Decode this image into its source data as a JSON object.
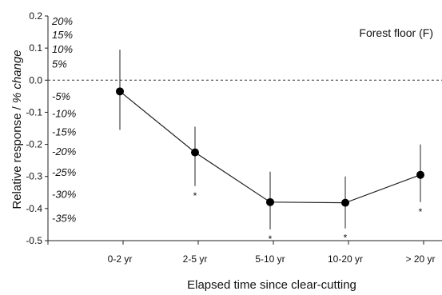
{
  "chart_data": {
    "type": "line",
    "panel_label": "Forest floor (F)",
    "xlabel": "Elapsed time since clear-cutting",
    "ylabel": {
      "plain": "Relative response / ",
      "italic": "% change"
    },
    "categories": [
      "0-2 yr",
      "2-5 yr",
      "5-10 yr",
      "10-20 yr",
      "> 20 yr"
    ],
    "values": [
      -0.035,
      -0.225,
      -0.38,
      -0.382,
      -0.295
    ],
    "error_low": [
      -0.155,
      -0.33,
      -0.465,
      -0.462,
      -0.38
    ],
    "error_high": [
      0.095,
      -0.145,
      -0.285,
      -0.3,
      -0.2
    ],
    "significance": [
      "",
      "*",
      "*",
      "*",
      "*"
    ],
    "ylim": [
      -0.5,
      0.2
    ],
    "yticks": [
      0.2,
      0.1,
      0.0,
      -0.1,
      -0.2,
      -0.3,
      -0.4,
      -0.5
    ],
    "ytick_labels": [
      "0.2",
      "0.1",
      "0.0",
      "-0.1",
      "-0.2",
      "-0.3",
      "-0.4",
      "-0.5"
    ],
    "pct_ticks": [
      {
        "value": 0.182,
        "label": "20%"
      },
      {
        "value": 0.14,
        "label": "15%"
      },
      {
        "value": 0.095,
        "label": "10%"
      },
      {
        "value": 0.049,
        "label": "5%"
      },
      {
        "value": -0.051,
        "label": "-5%"
      },
      {
        "value": -0.105,
        "label": "-10%"
      },
      {
        "value": -0.163,
        "label": "-15%"
      },
      {
        "value": -0.223,
        "label": "-20%"
      },
      {
        "value": -0.288,
        "label": "-25%"
      },
      {
        "value": -0.357,
        "label": "-30%"
      },
      {
        "value": -0.431,
        "label": "-35%"
      }
    ],
    "reference_line": 0.0,
    "grid": false,
    "colors": {
      "marker": "#000000",
      "line": "#222222",
      "reference": "#333333"
    }
  }
}
